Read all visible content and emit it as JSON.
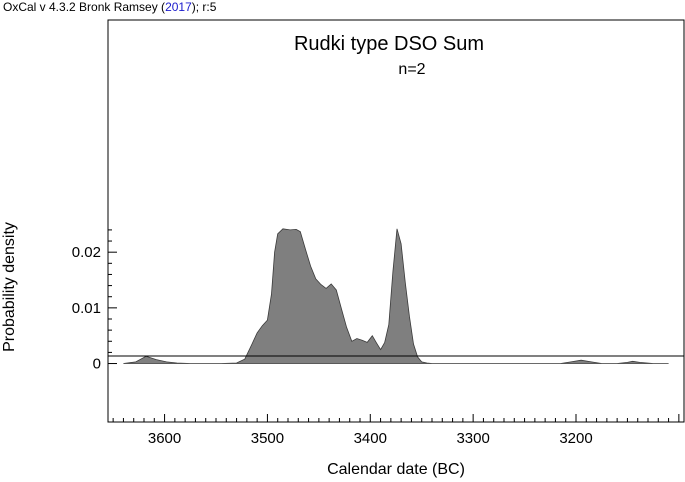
{
  "header": {
    "credit_prefix": "OxCal v 4.3.2 Bronk Ramsey (",
    "credit_year": "2017",
    "credit_suffix": "); r:5"
  },
  "chart_data": {
    "type": "area",
    "title": "Rudki type DSO Sum",
    "subtitle": "n=2",
    "xlabel": "Calendar date (BC)",
    "ylabel": "Probability density",
    "x_axis_reversed": true,
    "xlim": [
      3655,
      3095
    ],
    "ylim": [
      -0.0105,
      0.0617
    ],
    "x_ticks": [
      3600,
      3500,
      3400,
      3300,
      3200
    ],
    "y_ticks": [
      0,
      0.01,
      0.02
    ],
    "y_tick_labels": [
      "0",
      "0.01",
      "0.02"
    ],
    "grid": false,
    "fill_color": "#7f7f7f",
    "x": [
      3640,
      3628,
      3618,
      3608,
      3598,
      3588,
      3575,
      3560,
      3545,
      3530,
      3522,
      3515,
      3510,
      3505,
      3500,
      3496,
      3493,
      3490,
      3485,
      3478,
      3472,
      3468,
      3463,
      3458,
      3453,
      3448,
      3443,
      3438,
      3433,
      3428,
      3423,
      3418,
      3413,
      3408,
      3403,
      3398,
      3394,
      3390,
      3386,
      3382,
      3378,
      3374,
      3370,
      3366,
      3362,
      3358,
      3354,
      3350,
      3345,
      3340,
      3330,
      3300,
      3270,
      3240,
      3215,
      3205,
      3195,
      3185,
      3175,
      3160,
      3150,
      3145,
      3138,
      3125,
      3110
    ],
    "y": [
      0,
      0.0003,
      0.0013,
      0.0007,
      0.0003,
      0.0001,
      0.0,
      0.0,
      0.0,
      0.0001,
      0.0008,
      0.0035,
      0.0055,
      0.0068,
      0.0078,
      0.0125,
      0.02,
      0.0233,
      0.0242,
      0.024,
      0.0241,
      0.0237,
      0.0205,
      0.0175,
      0.0152,
      0.0142,
      0.0135,
      0.0143,
      0.0132,
      0.0098,
      0.0065,
      0.004,
      0.0045,
      0.0042,
      0.0038,
      0.005,
      0.0037,
      0.0025,
      0.0038,
      0.007,
      0.0165,
      0.0242,
      0.0215,
      0.0145,
      0.0085,
      0.0035,
      0.0012,
      0.0003,
      0.0001,
      0.0,
      0.0,
      0.0,
      0.0,
      0.0,
      0.0,
      0.0003,
      0.0006,
      0.0003,
      0.0,
      0.0,
      0.0002,
      0.0004,
      0.0002,
      0.0,
      0.0
    ]
  }
}
